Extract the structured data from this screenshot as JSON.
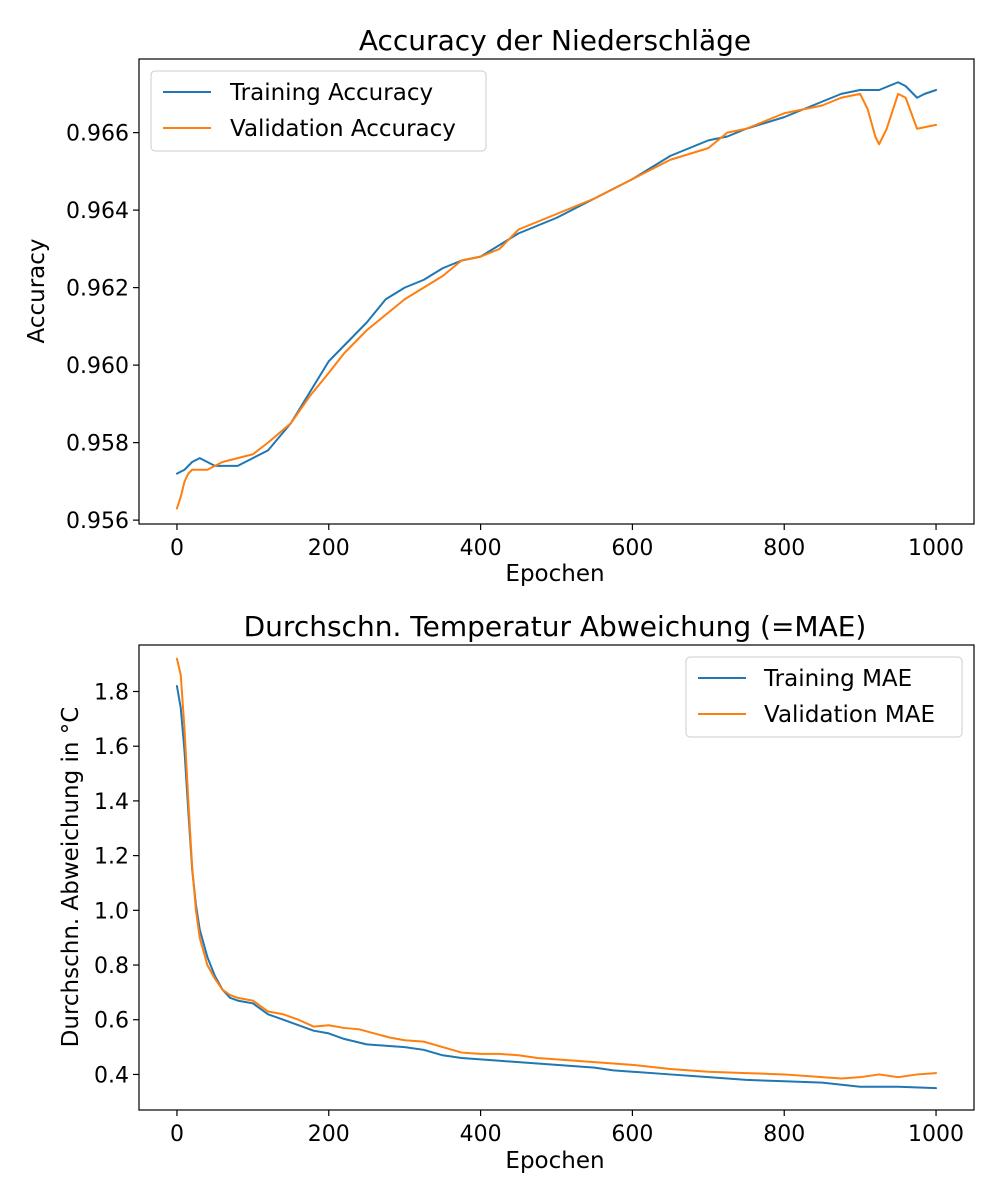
{
  "chart_data": [
    {
      "type": "line",
      "title": "Accuracy der Niederschläge",
      "xlabel": "Epochen",
      "ylabel": "Accuracy",
      "xlim": [
        -50,
        1050
      ],
      "ylim": [
        0.9559,
        0.9679
      ],
      "xticks": [
        0,
        200,
        400,
        600,
        800,
        1000
      ],
      "xtick_labels": [
        "0",
        "200",
        "400",
        "600",
        "800",
        "1000"
      ],
      "yticks": [
        0.956,
        0.958,
        0.96,
        0.962,
        0.964,
        0.966
      ],
      "ytick_labels": [
        "0.956",
        "0.958",
        "0.960",
        "0.962",
        "0.964",
        "0.966"
      ],
      "grid": false,
      "legend": "top-left",
      "series": [
        {
          "name": "Training Accuracy",
          "color": "#1f77b4",
          "x": [
            0,
            10,
            20,
            30,
            40,
            50,
            60,
            70,
            80,
            100,
            120,
            150,
            175,
            200,
            220,
            250,
            275,
            300,
            325,
            350,
            375,
            400,
            425,
            450,
            475,
            500,
            550,
            600,
            650,
            700,
            725,
            750,
            800,
            850,
            875,
            900,
            925,
            950,
            960,
            975,
            985,
            1000
          ],
          "values": [
            0.9572,
            0.9573,
            0.9575,
            0.9576,
            0.9575,
            0.9574,
            0.9574,
            0.9574,
            0.9574,
            0.9576,
            0.9578,
            0.9585,
            0.9593,
            0.9601,
            0.9605,
            0.9611,
            0.9617,
            0.962,
            0.9622,
            0.9625,
            0.9627,
            0.9628,
            0.9631,
            0.9634,
            0.9636,
            0.9638,
            0.9643,
            0.9648,
            0.9654,
            0.9658,
            0.9659,
            0.9661,
            0.9664,
            0.9668,
            0.967,
            0.9671,
            0.9671,
            0.9673,
            0.9672,
            0.9669,
            0.967,
            0.9671
          ]
        },
        {
          "name": "Validation Accuracy",
          "color": "#ff7f0e",
          "x": [
            0,
            5,
            10,
            15,
            20,
            30,
            40,
            50,
            60,
            80,
            100,
            120,
            150,
            175,
            200,
            220,
            250,
            275,
            300,
            325,
            350,
            375,
            400,
            425,
            450,
            475,
            500,
            550,
            600,
            650,
            700,
            725,
            750,
            800,
            850,
            875,
            900,
            910,
            920,
            925,
            935,
            950,
            960,
            975,
            1000
          ],
          "values": [
            0.9563,
            0.9566,
            0.957,
            0.9572,
            0.9573,
            0.9573,
            0.9573,
            0.9574,
            0.9575,
            0.9576,
            0.9577,
            0.958,
            0.9585,
            0.9592,
            0.9598,
            0.9603,
            0.9609,
            0.9613,
            0.9617,
            0.962,
            0.9623,
            0.9627,
            0.9628,
            0.963,
            0.9635,
            0.9637,
            0.9639,
            0.9643,
            0.9648,
            0.9653,
            0.9656,
            0.966,
            0.9661,
            0.9665,
            0.9667,
            0.9669,
            0.967,
            0.9666,
            0.9659,
            0.9657,
            0.9661,
            0.967,
            0.9669,
            0.9661,
            0.9662
          ]
        }
      ]
    },
    {
      "type": "line",
      "title": "Durchschn. Temperatur Abweichung (=MAE)",
      "xlabel": "Epochen",
      "ylabel": "Durchschn. Abweichung in °C",
      "xlim": [
        -50,
        1050
      ],
      "ylim": [
        0.27,
        1.97
      ],
      "xticks": [
        0,
        200,
        400,
        600,
        800,
        1000
      ],
      "xtick_labels": [
        "0",
        "200",
        "400",
        "600",
        "800",
        "1000"
      ],
      "yticks": [
        0.4,
        0.6,
        0.8,
        1.0,
        1.2,
        1.4,
        1.6,
        1.8
      ],
      "ytick_labels": [
        "0.4",
        "0.6",
        "0.8",
        "1.0",
        "1.2",
        "1.4",
        "1.6",
        "1.8"
      ],
      "grid": false,
      "legend": "top-right",
      "series": [
        {
          "name": "Training MAE",
          "color": "#1f77b4",
          "x": [
            0,
            5,
            10,
            15,
            20,
            25,
            30,
            40,
            50,
            60,
            70,
            80,
            90,
            100,
            120,
            140,
            160,
            180,
            200,
            220,
            250,
            275,
            300,
            325,
            350,
            375,
            400,
            425,
            450,
            475,
            500,
            525,
            550,
            575,
            600,
            650,
            700,
            750,
            800,
            850,
            900,
            950,
            1000
          ],
          "values": [
            1.82,
            1.74,
            1.58,
            1.36,
            1.15,
            1.02,
            0.93,
            0.83,
            0.76,
            0.71,
            0.68,
            0.67,
            0.665,
            0.66,
            0.62,
            0.6,
            0.58,
            0.56,
            0.55,
            0.53,
            0.51,
            0.505,
            0.5,
            0.49,
            0.47,
            0.46,
            0.455,
            0.45,
            0.445,
            0.44,
            0.435,
            0.43,
            0.425,
            0.415,
            0.41,
            0.4,
            0.39,
            0.38,
            0.375,
            0.37,
            0.355,
            0.355,
            0.35
          ]
        },
        {
          "name": "Validation MAE",
          "color": "#ff7f0e",
          "x": [
            0,
            5,
            10,
            15,
            20,
            25,
            30,
            40,
            50,
            60,
            70,
            80,
            90,
            100,
            120,
            140,
            160,
            180,
            200,
            220,
            240,
            260,
            280,
            300,
            325,
            350,
            375,
            400,
            425,
            450,
            475,
            500,
            525,
            550,
            575,
            600,
            650,
            700,
            750,
            800,
            850,
            875,
            900,
            925,
            950,
            975,
            1000
          ],
          "values": [
            1.92,
            1.86,
            1.66,
            1.4,
            1.16,
            1.0,
            0.9,
            0.8,
            0.75,
            0.71,
            0.69,
            0.68,
            0.675,
            0.67,
            0.63,
            0.62,
            0.6,
            0.575,
            0.58,
            0.57,
            0.565,
            0.55,
            0.535,
            0.525,
            0.52,
            0.5,
            0.48,
            0.475,
            0.475,
            0.47,
            0.46,
            0.455,
            0.45,
            0.445,
            0.44,
            0.435,
            0.42,
            0.41,
            0.405,
            0.4,
            0.39,
            0.385,
            0.39,
            0.4,
            0.39,
            0.4,
            0.405
          ]
        }
      ]
    }
  ]
}
